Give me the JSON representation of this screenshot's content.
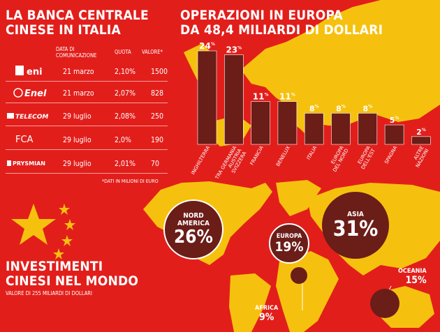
{
  "left_title": "LA BANCA CENTRALE\nCINESE IN ITALIA",
  "table": {
    "headers": {
      "date": "DATA DI\nCOMUNICAZIONE",
      "quota": "QUOTA",
      "valore": "VALORE*"
    },
    "rows": [
      {
        "company": "eni",
        "date": "21 marzo",
        "quota": "2,10%",
        "valore": "1500"
      },
      {
        "company": "Enel",
        "date": "21 marzo",
        "quota": "2,07%",
        "valore": "828"
      },
      {
        "company": "TELECOM",
        "date": "29 luglio",
        "quota": "2,08%",
        "valore": "250"
      },
      {
        "company": "FCA",
        "date": "29 luglio",
        "quota": "2,0%",
        "valore": "190"
      },
      {
        "company": "PRYSMIAN",
        "date": "29 luglio",
        "quota": "2,01%",
        "valore": "70"
      }
    ],
    "note": "*DATI IN MILIONI DI EURO"
  },
  "chart_title": "OPERAZIONI IN EUROPA\nDA 48,4 MILIARDI DI DOLLARI",
  "chart_data": [
    {
      "type": "bar",
      "title": "OPERAZIONI IN EUROPA DA 48,4 MILIARDI DI DOLLARI",
      "categories": [
        "INGHILTERRA",
        "TRA GERMANIA AUSTRIA SVIZZERA",
        "FRANCIA",
        "BENELUX",
        "ITALIA",
        "EUROPA DEL NORD",
        "EUROPA DELL'EST",
        "SPAGNA",
        "ALTRE NAZIONI"
      ],
      "labels": [
        "INGHILTERRA",
        "TRA GERMANIA\nAUSTRIA\nSVIZZERA",
        "FRANCIA",
        "BENELUX",
        "ITALIA",
        "EUROPA\nDEL NORD",
        "EUROPA\nDELL'EST",
        "SPAGNA",
        "ALTRE\nNAZIONI"
      ],
      "values": [
        24,
        23,
        11,
        11,
        8,
        8,
        8,
        5,
        2
      ],
      "unit": "%",
      "ylim": [
        0,
        24
      ]
    },
    {
      "type": "bubble",
      "title": "INVESTIMENTI CINESI NEL MONDO",
      "subtitle": "VALORE DI 255 MILIARDI DI DOLLARI",
      "categories": [
        "NORD AMERICA",
        "EUROPA",
        "ASIA",
        "OCEANIA",
        "AFRICA"
      ],
      "values": [
        26,
        19,
        31,
        15,
        9
      ],
      "unit": "%"
    }
  ],
  "world": {
    "title": "INVESTIMENTI\nCINESI NEL MONDO",
    "subtitle": "VALORE DI 255 MILIARDI DI DOLLARI",
    "regions": [
      {
        "label": "NORD\nAMERICA",
        "value": "26%"
      },
      {
        "label": "EUROPA",
        "value": "19%"
      },
      {
        "label": "ASIA",
        "value": "31%"
      },
      {
        "label": "OCEANIA",
        "value": "15%"
      },
      {
        "label": "AFRICA",
        "value": "9%"
      }
    ]
  },
  "colors": {
    "background": "#e21e1b",
    "land": "#f6c10e",
    "bar": "#6b1d18",
    "star": "#f6c10e"
  }
}
